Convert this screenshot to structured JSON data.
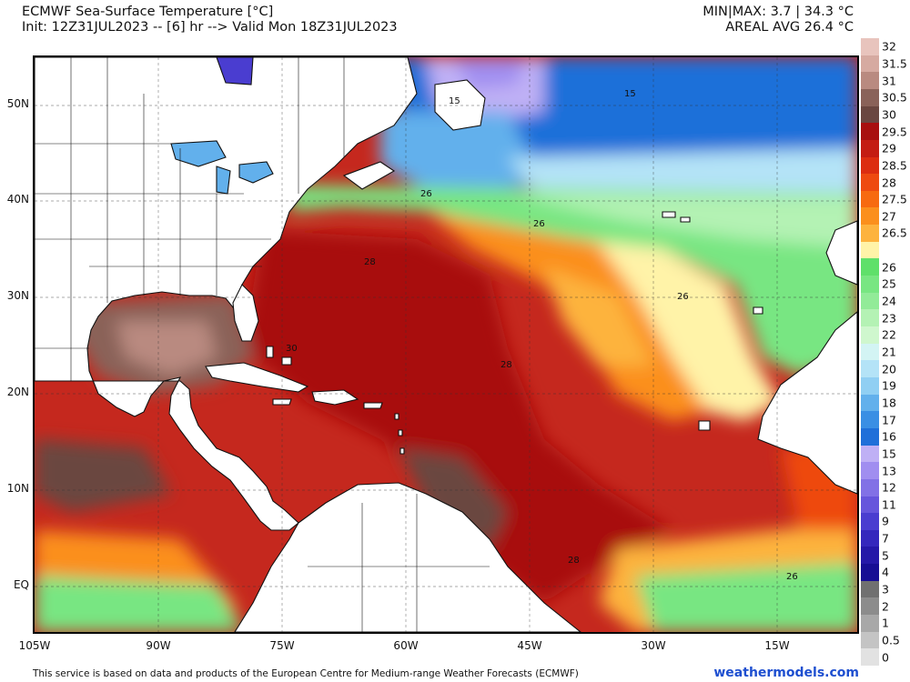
{
  "header": {
    "title": "ECMWF Sea-Surface Temperature [°C]",
    "init": "Init: 12Z31JUL2023 -- [6] hr --> Valid Mon 18Z31JUL2023",
    "minmax": "MIN|MAX: 3.7 | 34.3 °C",
    "areal_avg": "AREAL AVG 26.4 °C"
  },
  "map": {
    "lat_labels": [
      "50N",
      "40N",
      "30N",
      "20N",
      "10N",
      "EQ"
    ],
    "lon_labels": [
      "105W",
      "90W",
      "75W",
      "60W",
      "45W",
      "30W",
      "15W"
    ],
    "contour_labels": [
      "15",
      "15",
      "26",
      "26",
      "28",
      "26",
      "28",
      "30",
      "28",
      "26"
    ]
  },
  "legend": {
    "levels": [
      {
        "label": "32",
        "color": "#e8c4bd"
      },
      {
        "label": "31.5",
        "color": "#d6aaa1"
      },
      {
        "label": "31",
        "color": "#b98a80"
      },
      {
        "label": "30.5",
        "color": "#8a6259"
      },
      {
        "label": "30",
        "color": "#6a4640"
      },
      {
        "label": "29.5",
        "color": "#a80f0f"
      },
      {
        "label": "29",
        "color": "#c41c12"
      },
      {
        "label": "28.5",
        "color": "#dc2d10"
      },
      {
        "label": "28",
        "color": "#ee4a10"
      },
      {
        "label": "27.5",
        "color": "#f76a10"
      },
      {
        "label": "27",
        "color": "#fb8f1c"
      },
      {
        "label": "26.5",
        "color": "#fdb33e"
      },
      {
        "label": "",
        "color": "#fff3a8"
      },
      {
        "label": "26",
        "color": "#5fe06a"
      },
      {
        "label": "25",
        "color": "#78e682"
      },
      {
        "label": "24",
        "color": "#92eb98"
      },
      {
        "label": "23",
        "color": "#b4f2b4"
      },
      {
        "label": "22",
        "color": "#cff7ce"
      },
      {
        "label": "21",
        "color": "#d3f4f4"
      },
      {
        "label": "20",
        "color": "#b4e3f7"
      },
      {
        "label": "19",
        "color": "#90cff3"
      },
      {
        "label": "18",
        "color": "#62b0ec"
      },
      {
        "label": "17",
        "color": "#3a8fe4"
      },
      {
        "label": "16",
        "color": "#1f6fd9"
      },
      {
        "label": "15",
        "color": "#bfb0f5"
      },
      {
        "label": "13",
        "color": "#a08ef0"
      },
      {
        "label": "12",
        "color": "#8271e6"
      },
      {
        "label": "11",
        "color": "#6655dc"
      },
      {
        "label": "9",
        "color": "#4a3dd0"
      },
      {
        "label": "7",
        "color": "#3427bd"
      },
      {
        "label": "5",
        "color": "#2518a8"
      },
      {
        "label": "4",
        "color": "#170e94"
      },
      {
        "label": "3",
        "color": "#707070"
      },
      {
        "label": "2",
        "color": "#8c8c8c"
      },
      {
        "label": "1",
        "color": "#a8a8a8"
      },
      {
        "label": "0.5",
        "color": "#c4c4c4"
      },
      {
        "label": "0",
        "color": "#e2e2e2"
      }
    ]
  },
  "footer": {
    "disclaimer": "This service is based on data and products of the European Centre for Medium-range Weather Forecasts (ECMWF)",
    "brand": "weathermodels.com"
  }
}
